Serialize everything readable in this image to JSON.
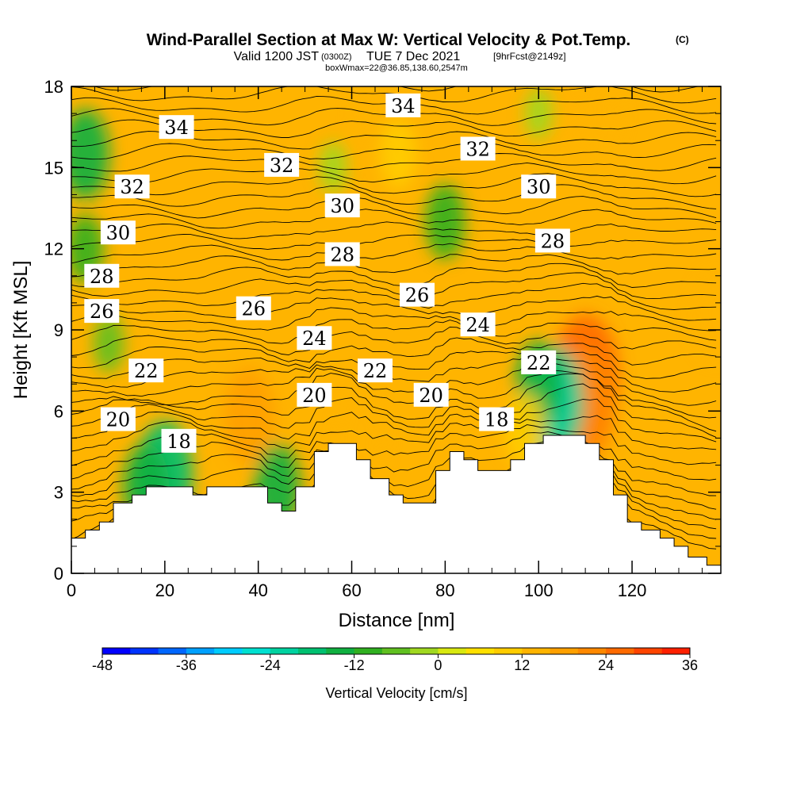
{
  "header": {
    "title": "Wind-Parallel Section at Max W: Vertical Velocity & Pot.Temp.",
    "title_mark": "(C)",
    "valid_a": "Valid 1200 JST",
    "valid_b": "(0300Z)",
    "valid_c": "TUE 7 Dec 2021",
    "valid_d": "[9hrFcst@2149z]",
    "box": "boxWmax=22@36.85,138.60,2547m"
  },
  "chart_data": {
    "type": "heatmap",
    "xlabel": "Distance [nm]",
    "ylabel": "Height [Kft MSL]",
    "xlim": [
      0,
      139
    ],
    "ylim": [
      0,
      18
    ],
    "x_ticks": [
      0,
      20,
      40,
      60,
      80,
      100,
      120
    ],
    "y_ticks": [
      0,
      3,
      6,
      9,
      12,
      15,
      18
    ],
    "terrain_kft": [
      [
        0,
        1.3
      ],
      [
        3,
        1.3
      ],
      [
        3,
        1.6
      ],
      [
        6,
        1.6
      ],
      [
        6,
        1.9
      ],
      [
        9,
        1.9
      ],
      [
        9,
        2.6
      ],
      [
        13,
        2.6
      ],
      [
        13,
        2.9
      ],
      [
        16,
        2.9
      ],
      [
        16,
        3.2
      ],
      [
        26,
        3.2
      ],
      [
        26,
        2.9
      ],
      [
        29,
        2.9
      ],
      [
        29,
        3.2
      ],
      [
        42,
        3.2
      ],
      [
        42,
        2.6
      ],
      [
        45,
        2.6
      ],
      [
        45,
        2.3
      ],
      [
        48,
        2.3
      ],
      [
        48,
        3.2
      ],
      [
        52,
        3.2
      ],
      [
        52,
        4.5
      ],
      [
        55,
        4.5
      ],
      [
        55,
        4.8
      ],
      [
        61,
        4.8
      ],
      [
        61,
        4.2
      ],
      [
        64,
        4.2
      ],
      [
        64,
        3.5
      ],
      [
        68,
        3.5
      ],
      [
        68,
        2.9
      ],
      [
        71,
        2.9
      ],
      [
        71,
        2.6
      ],
      [
        78,
        2.6
      ],
      [
        78,
        3.8
      ],
      [
        81,
        3.8
      ],
      [
        81,
        4.5
      ],
      [
        84,
        4.5
      ],
      [
        84,
        4.2
      ],
      [
        87,
        4.2
      ],
      [
        87,
        3.8
      ],
      [
        94,
        3.8
      ],
      [
        94,
        4.2
      ],
      [
        97,
        4.2
      ],
      [
        97,
        4.8
      ],
      [
        101,
        4.8
      ],
      [
        101,
        5.1
      ],
      [
        110,
        5.1
      ],
      [
        110,
        4.8
      ],
      [
        113,
        4.8
      ],
      [
        113,
        4.2
      ],
      [
        116,
        4.2
      ],
      [
        116,
        2.9
      ],
      [
        119,
        2.9
      ],
      [
        119,
        1.9
      ],
      [
        122,
        1.9
      ],
      [
        122,
        1.6
      ],
      [
        126,
        1.6
      ],
      [
        126,
        1.3
      ],
      [
        129,
        1.3
      ],
      [
        129,
        1.0
      ],
      [
        132,
        1.0
      ],
      [
        132,
        0.6
      ],
      [
        136,
        0.6
      ],
      [
        136,
        0.3
      ],
      [
        139,
        0.3
      ]
    ],
    "theta_contour_labels": [
      {
        "value": "34",
        "x": 22.5,
        "y": 16.5
      },
      {
        "value": "34",
        "x": 71,
        "y": 17.3
      },
      {
        "value": "32",
        "x": 13,
        "y": 14.3
      },
      {
        "value": "32",
        "x": 45,
        "y": 15.1
      },
      {
        "value": "32",
        "x": 87,
        "y": 15.7
      },
      {
        "value": "30",
        "x": 10,
        "y": 12.6
      },
      {
        "value": "30",
        "x": 58,
        "y": 13.6
      },
      {
        "value": "30",
        "x": 100,
        "y": 14.3
      },
      {
        "value": "28",
        "x": 6.5,
        "y": 11.0
      },
      {
        "value": "28",
        "x": 58,
        "y": 11.8
      },
      {
        "value": "28",
        "x": 103,
        "y": 12.3
      },
      {
        "value": "26",
        "x": 6.5,
        "y": 9.7
      },
      {
        "value": "26",
        "x": 39,
        "y": 9.8
      },
      {
        "value": "26",
        "x": 74,
        "y": 10.3
      },
      {
        "value": "24",
        "x": 52,
        "y": 8.7
      },
      {
        "value": "24",
        "x": 87,
        "y": 9.2
      },
      {
        "value": "22",
        "x": 16,
        "y": 7.5
      },
      {
        "value": "22",
        "x": 65,
        "y": 7.5
      },
      {
        "value": "22",
        "x": 100,
        "y": 7.8
      },
      {
        "value": "20",
        "x": 10,
        "y": 5.7
      },
      {
        "value": "20",
        "x": 52,
        "y": 6.6
      },
      {
        "value": "20",
        "x": 77,
        "y": 6.6
      },
      {
        "value": "18",
        "x": 23,
        "y": 4.9
      },
      {
        "value": "18",
        "x": 91,
        "y": 5.7
      }
    ],
    "vertical_velocity_features": [
      {
        "x": 38,
        "y": 5.8,
        "w": 17
      },
      {
        "x": 110,
        "y": 7.2,
        "w": 26
      },
      {
        "x": 110,
        "y": 6.2,
        "w": 22
      },
      {
        "x": 103,
        "y": 6.3,
        "w": -22
      },
      {
        "x": 100,
        "y": 7.0,
        "w": -14
      },
      {
        "x": 20,
        "y": 3.7,
        "w": -19
      },
      {
        "x": 16,
        "y": 3.2,
        "w": -14
      },
      {
        "x": 44,
        "y": 3.2,
        "w": -14
      },
      {
        "x": 80,
        "y": 13.0,
        "w": -11
      },
      {
        "x": 3,
        "y": 15.5,
        "w": -15
      },
      {
        "x": 3,
        "y": 12.0,
        "w": -9
      },
      {
        "x": 65,
        "y": 17.0,
        "w": 12
      },
      {
        "x": 70,
        "y": 15.5,
        "w": 9
      },
      {
        "x": 113,
        "y": 17.0,
        "w": 12
      },
      {
        "x": 138,
        "y": 9.5,
        "w": 14
      },
      {
        "x": 62,
        "y": 5.0,
        "w": 14
      },
      {
        "x": 97,
        "y": 5.3,
        "w": 11
      },
      {
        "x": 56,
        "y": 15.0,
        "w": -4
      },
      {
        "x": 100,
        "y": 17.0,
        "w": -4
      },
      {
        "x": 8,
        "y": 8.5,
        "w": -6
      }
    ],
    "colorbar": {
      "label": "Vertical Velocity [cm/s]",
      "min": -48,
      "max": 36,
      "step": 4,
      "tick_labels": [
        "-48",
        "-36",
        "-24",
        "-12",
        "0",
        "12",
        "24",
        "36"
      ],
      "colors": [
        "#0000ff",
        "#0033ff",
        "#0066ff",
        "#00a0ff",
        "#00ccff",
        "#00e0d0",
        "#00d2a0",
        "#00c070",
        "#10b040",
        "#30b020",
        "#60c020",
        "#a0d820",
        "#d8e810",
        "#ffe000",
        "#ffcc00",
        "#ffb400",
        "#ffa000",
        "#ff8800",
        "#ff6a00",
        "#ff4400",
        "#ff2000",
        "#e0002a",
        "#c00050",
        "#a00070",
        "#800090",
        "#6000a0"
      ]
    }
  }
}
